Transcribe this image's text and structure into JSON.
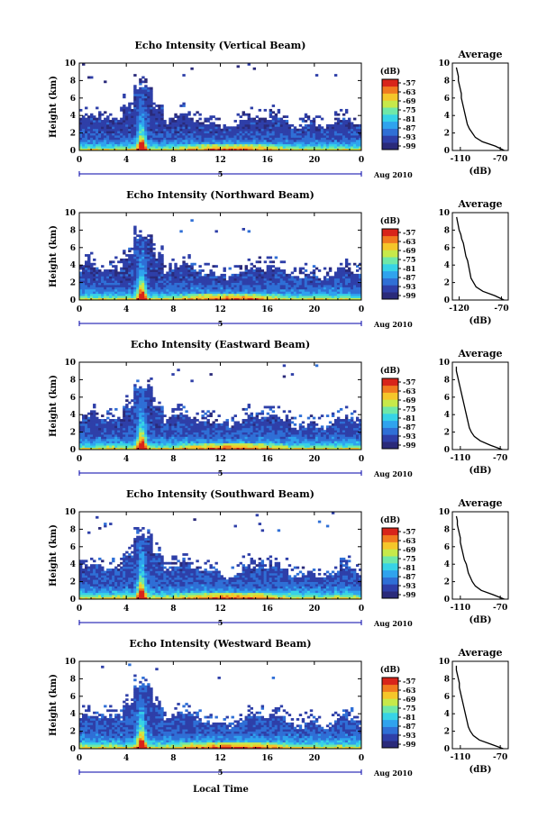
{
  "figure": {
    "xlabel": "Local Time",
    "date_label": "Aug 2010",
    "day_label": "5",
    "colorbar_unit": "(dB)",
    "colorbar_ticks": [
      "-57",
      "-63",
      "-69",
      "-75",
      "-81",
      "-87",
      "-93",
      "-99"
    ],
    "colorbar_colors": [
      "#2a2a7a",
      "#2e3fa8",
      "#2f6fd6",
      "#2fa3ee",
      "#37d3e6",
      "#6fe8a8",
      "#c7e94a",
      "#f5c62a",
      "#f07a1f",
      "#d8241a"
    ],
    "avg_title": "Average",
    "avg_xlabel": "(dB)"
  },
  "chart_data": [
    {
      "type": "heatmap",
      "title": "Echo Intensity (Vertical Beam)",
      "xlabel": "",
      "ylabel": "Height (km)",
      "x_ticks": [
        "0",
        "4",
        "8",
        "12",
        "16",
        "20",
        "0"
      ],
      "xlim": [
        0,
        24
      ],
      "y_ticks": [
        "0",
        "2",
        "4",
        "6",
        "8",
        "10"
      ],
      "ylim": [
        0,
        10
      ],
      "avg_x_ticks": [
        "-110",
        "-70"
      ],
      "avg_xlim": [
        -118,
        -62
      ],
      "avg_profile": {
        "height": [
          0,
          0.5,
          1,
          1.5,
          2,
          2.5,
          3,
          3.5,
          4,
          4.5,
          5,
          5.5,
          6,
          6.5,
          7,
          7.5,
          8,
          8.5,
          9,
          9.5
        ],
        "value": [
          -66,
          -75,
          -88,
          -95,
          -98,
          -101,
          -103,
          -104,
          -105,
          -106,
          -107,
          -108,
          -109,
          -109,
          -110,
          -111,
          -112,
          -112,
          -113,
          -114
        ]
      }
    },
    {
      "type": "heatmap",
      "title": "Echo Intensity (Northward Beam)",
      "xlabel": "",
      "ylabel": "Height (km)",
      "x_ticks": [
        "0",
        "4",
        "8",
        "12",
        "16",
        "20",
        "0"
      ],
      "xlim": [
        0,
        24
      ],
      "y_ticks": [
        "0",
        "2",
        "4",
        "6",
        "8",
        "10"
      ],
      "ylim": [
        0,
        10
      ],
      "avg_x_ticks": [
        "-120",
        "-70"
      ],
      "avg_xlim": [
        -128,
        -62
      ],
      "avg_profile": {
        "height": [
          0,
          0.5,
          1,
          1.5,
          2,
          2.5,
          3,
          3.5,
          4,
          4.5,
          5,
          5.5,
          6,
          6.5,
          7,
          7.5,
          8,
          8.5,
          9,
          9.5
        ],
        "value": [
          -67,
          -78,
          -92,
          -100,
          -103,
          -106,
          -107,
          -108,
          -109,
          -110,
          -112,
          -113,
          -114,
          -115,
          -117,
          -118,
          -120,
          -121,
          -122,
          -123
        ]
      }
    },
    {
      "type": "heatmap",
      "title": "Echo Intensity (Eastward Beam)",
      "xlabel": "",
      "ylabel": "Height (km)",
      "x_ticks": [
        "0",
        "4",
        "8",
        "12",
        "16",
        "20",
        "0"
      ],
      "xlim": [
        0,
        24
      ],
      "y_ticks": [
        "0",
        "2",
        "4",
        "6",
        "8",
        "10"
      ],
      "ylim": [
        0,
        10
      ],
      "avg_x_ticks": [
        "-110",
        "-70"
      ],
      "avg_xlim": [
        -118,
        -62
      ],
      "avg_profile": {
        "height": [
          0,
          0.5,
          1,
          1.5,
          2,
          2.5,
          3,
          3.5,
          4,
          4.5,
          5,
          5.5,
          6,
          6.5,
          7,
          7.5,
          8,
          8.5,
          9,
          9.5
        ],
        "value": [
          -68,
          -80,
          -90,
          -96,
          -99,
          -101,
          -102,
          -103,
          -104,
          -105,
          -106,
          -107,
          -108,
          -109,
          -110,
          -111,
          -112,
          -113,
          -114,
          -114
        ]
      }
    },
    {
      "type": "heatmap",
      "title": "Echo Intensity (Southward Beam)",
      "xlabel": "",
      "ylabel": "Height (km)",
      "x_ticks": [
        "0",
        "4",
        "8",
        "12",
        "16",
        "20",
        "0"
      ],
      "xlim": [
        0,
        24
      ],
      "y_ticks": [
        "0",
        "2",
        "4",
        "6",
        "8",
        "10"
      ],
      "ylim": [
        0,
        10
      ],
      "avg_x_ticks": [
        "-110",
        "-70"
      ],
      "avg_xlim": [
        -118,
        -62
      ],
      "avg_profile": {
        "height": [
          0,
          0.5,
          1,
          1.5,
          2,
          2.5,
          3,
          3.5,
          4,
          4.5,
          5,
          5.5,
          6,
          6.5,
          7,
          7.5,
          8,
          8.5,
          9,
          9.5
        ],
        "value": [
          -66,
          -77,
          -89,
          -95,
          -98,
          -100,
          -102,
          -103,
          -104,
          -106,
          -107,
          -108,
          -109,
          -110,
          -110,
          -111,
          -112,
          -113,
          -113,
          -114
        ]
      }
    },
    {
      "type": "heatmap",
      "title": "Echo Intensity (Westward Beam)",
      "xlabel": "",
      "ylabel": "Height (km)",
      "x_ticks": [
        "0",
        "4",
        "8",
        "12",
        "16",
        "20",
        "0"
      ],
      "xlim": [
        0,
        24
      ],
      "y_ticks": [
        "0",
        "2",
        "4",
        "6",
        "8",
        "10"
      ],
      "ylim": [
        0,
        10
      ],
      "avg_x_ticks": [
        "-110",
        "-70"
      ],
      "avg_xlim": [
        -118,
        -62
      ],
      "avg_profile": {
        "height": [
          0,
          0.5,
          1,
          1.5,
          2,
          2.5,
          3,
          3.5,
          4,
          4.5,
          5,
          5.5,
          6,
          6.5,
          7,
          7.5,
          8,
          8.5,
          9,
          9.5
        ],
        "value": [
          -67,
          -79,
          -91,
          -97,
          -100,
          -102,
          -103,
          -104,
          -105,
          -106,
          -107,
          -108,
          -109,
          -110,
          -111,
          -111,
          -112,
          -113,
          -114,
          -114
        ]
      }
    }
  ]
}
